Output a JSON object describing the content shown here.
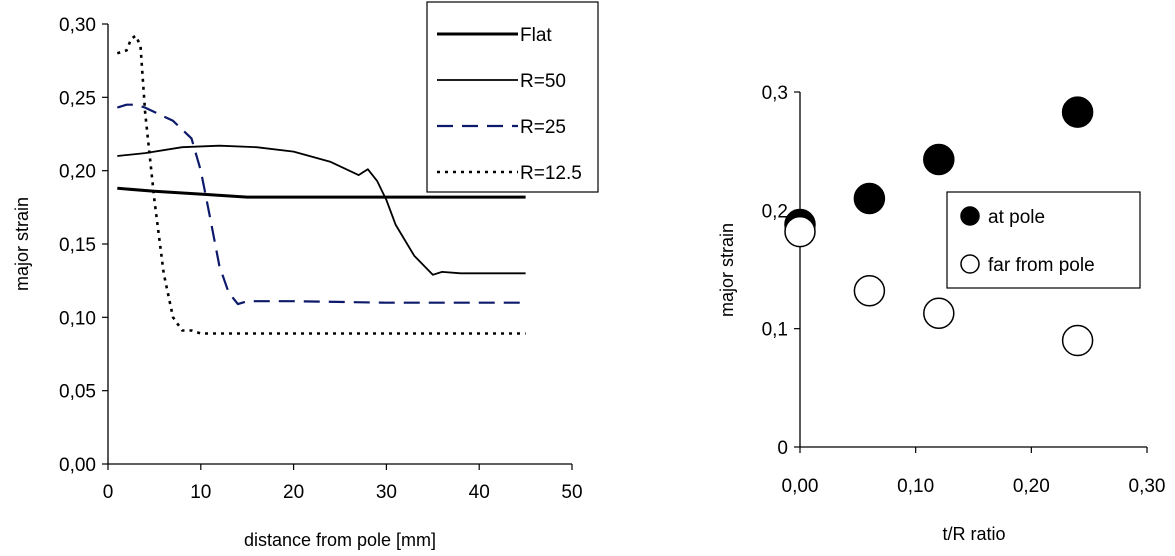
{
  "chart_data": [
    {
      "type": "line",
      "title": "",
      "xlabel": "distance from pole [mm]",
      "ylabel": "major strain",
      "xlim": [
        0,
        50
      ],
      "ylim": [
        0,
        0.3
      ],
      "xticks": [
        0,
        10,
        20,
        30,
        40,
        50
      ],
      "xtick_labels": [
        "0",
        "10",
        "20",
        "30",
        "40",
        "50"
      ],
      "yticks": [
        0,
        0.05,
        0.1,
        0.15,
        0.2,
        0.25,
        0.3
      ],
      "ytick_labels": [
        "0,00",
        "0,05",
        "0,10",
        "0,15",
        "0,20",
        "0,25",
        "0,30"
      ],
      "grid": false,
      "legend_position": "top-right",
      "series": [
        {
          "name": "Flat",
          "color": "#000000",
          "dash": "solid",
          "width": 3,
          "x": [
            1,
            5,
            10,
            15,
            20,
            25,
            30,
            35,
            40,
            45
          ],
          "y": [
            0.188,
            0.186,
            0.184,
            0.182,
            0.182,
            0.182,
            0.182,
            0.182,
            0.182,
            0.182
          ]
        },
        {
          "name": "R=50",
          "color": "#000000",
          "dash": "solid",
          "width": 1.8,
          "x": [
            1,
            4,
            8,
            12,
            16,
            20,
            24,
            27,
            28,
            29,
            30,
            31,
            33,
            35,
            36,
            38,
            40,
            45
          ],
          "y": [
            0.21,
            0.212,
            0.216,
            0.217,
            0.216,
            0.213,
            0.206,
            0.197,
            0.201,
            0.193,
            0.18,
            0.163,
            0.142,
            0.129,
            0.131,
            0.13,
            0.13,
            0.13
          ]
        },
        {
          "name": "R=25",
          "color": "#0d1a6b",
          "dash": "dashed",
          "width": 2.2,
          "x": [
            1,
            2,
            3,
            4,
            5,
            7,
            8,
            9,
            10,
            11,
            12,
            13,
            14,
            15,
            20,
            30,
            45
          ],
          "y": [
            0.243,
            0.245,
            0.245,
            0.243,
            0.24,
            0.234,
            0.228,
            0.222,
            0.2,
            0.168,
            0.135,
            0.117,
            0.109,
            0.111,
            0.111,
            0.11,
            0.11
          ]
        },
        {
          "name": "R=12.5",
          "color": "#000000",
          "dash": "dotted",
          "width": 2.6,
          "x": [
            1,
            2,
            2.5,
            3,
            3.5,
            4,
            5,
            6,
            7,
            8,
            9,
            10,
            20,
            45
          ],
          "y": [
            0.28,
            0.282,
            0.29,
            0.292,
            0.285,
            0.24,
            0.18,
            0.13,
            0.1,
            0.091,
            0.091,
            0.089,
            0.089,
            0.089
          ]
        }
      ]
    },
    {
      "type": "scatter",
      "title": "",
      "xlabel": "t/R ratio",
      "ylabel": "major strain",
      "xlim": [
        0,
        0.3
      ],
      "ylim": [
        0,
        0.3
      ],
      "xticks": [
        0,
        0.1,
        0.2,
        0.3
      ],
      "xtick_labels": [
        "0,00",
        "0,10",
        "0,20",
        "0,30"
      ],
      "yticks": [
        0,
        0.1,
        0.2,
        0.3
      ],
      "ytick_labels": [
        "0",
        "0,1",
        "0,2",
        "0,3"
      ],
      "grid": false,
      "legend_position": "right",
      "series": [
        {
          "name": "at pole",
          "fill": "#000000",
          "x": [
            0,
            0.06,
            0.12,
            0.24
          ],
          "y": [
            0.188,
            0.21,
            0.243,
            0.283
          ]
        },
        {
          "name": "far from pole",
          "fill": "#ffffff",
          "x": [
            0,
            0.06,
            0.12,
            0.24
          ],
          "y": [
            0.182,
            0.132,
            0.113,
            0.09
          ]
        }
      ]
    }
  ]
}
